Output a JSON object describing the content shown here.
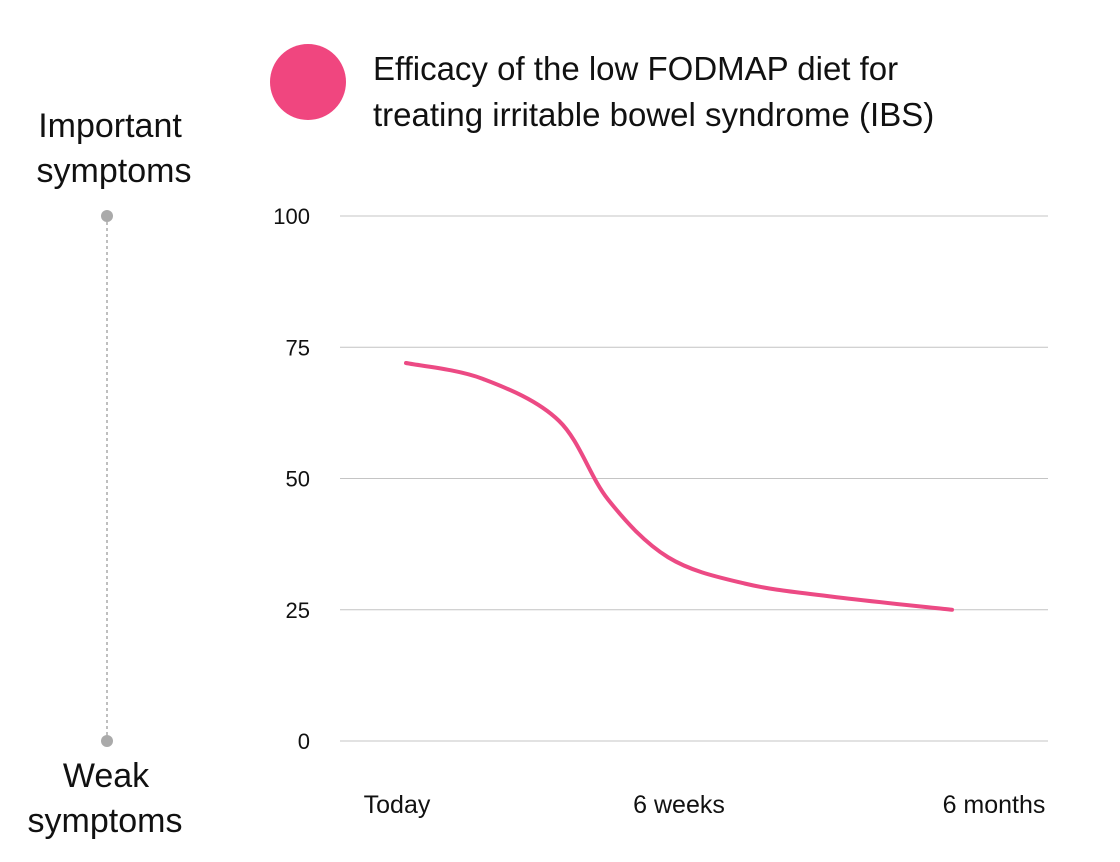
{
  "chart_data": {
    "type": "line",
    "title_lines": [
      "Efficacy of the low FODMAP diet for",
      "treating irritable bowel syndrome (IBS)"
    ],
    "legend_color": "#f0467f",
    "line_color": "#ec4a84",
    "grid_color": "#c4c4c4",
    "ylim": [
      0,
      100
    ],
    "y_ticks": [
      100,
      75,
      50,
      25,
      0
    ],
    "x_tick_labels": [
      "Today",
      "6 weeks",
      "6 months"
    ],
    "x": [
      0,
      0.14,
      0.28,
      0.37,
      0.48,
      0.62,
      0.78,
      1.0
    ],
    "values": [
      72,
      69,
      61,
      46,
      35,
      30,
      27.5,
      25
    ],
    "side_scale": {
      "top_label": [
        "Important",
        "symptoms"
      ],
      "bottom_label": [
        "Weak",
        "symptoms"
      ],
      "color": "#aaaaaa"
    }
  }
}
